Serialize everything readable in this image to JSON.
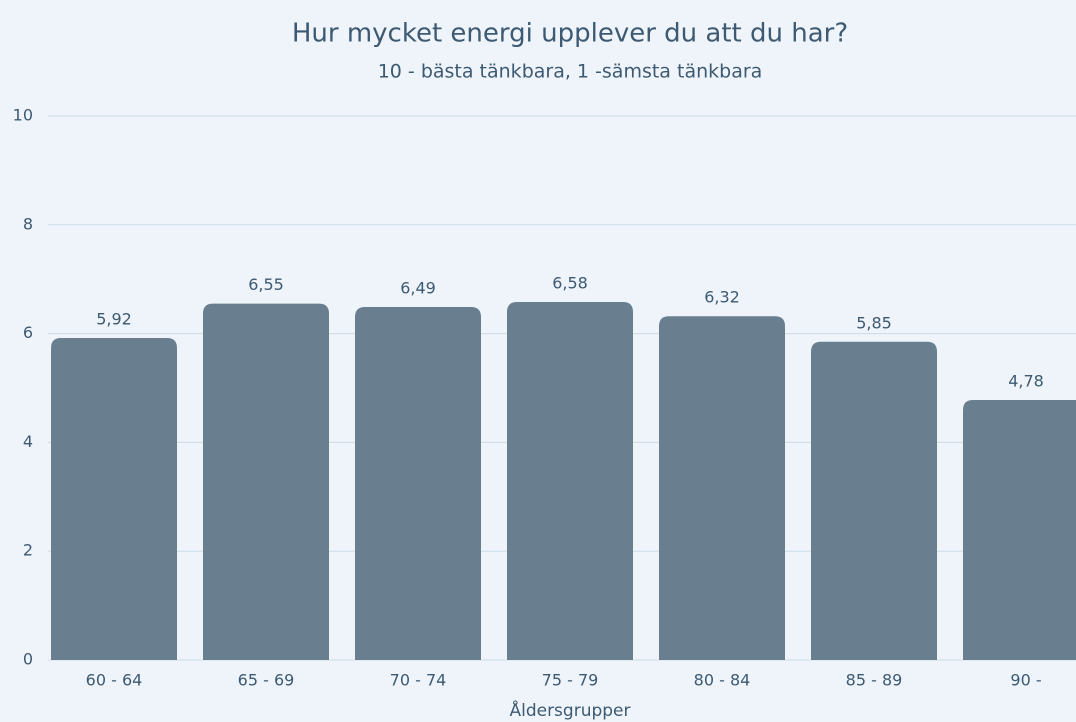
{
  "chart_data": {
    "type": "bar",
    "title": "Hur mycket energi upplever du att du har?",
    "subtitle": "10 - bästa tänkbara, 1 -sämsta tänkbara",
    "x_label": "Åldersgrupper",
    "categories": [
      "60 - 64",
      "65 - 69",
      "70 - 74",
      "75 - 79",
      "80 - 84",
      "85 - 89",
      "90 -"
    ],
    "values": [
      5.92,
      6.55,
      6.49,
      6.58,
      6.32,
      5.85,
      4.78
    ],
    "value_labels": [
      "5,92",
      "6,55",
      "6,49",
      "6,58",
      "6,32",
      "5,85",
      "4,78"
    ],
    "color": "#697f90",
    "ylim": [
      0,
      10
    ],
    "yticks": [
      0,
      2,
      4,
      6,
      8,
      10
    ],
    "grid": true
  }
}
